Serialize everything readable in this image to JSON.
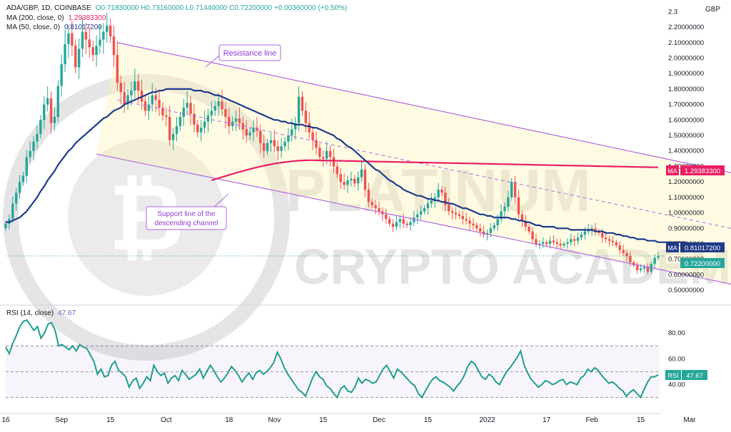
{
  "header": {
    "symbol": "ADA/GBP, 1D, COINBASE",
    "ohlc": "O0.71830000 H0.73160000 L0.71440000 C0.72200000 +0.00360000 (+0.50%)",
    "ma200_label": "MA (200, close, 0)",
    "ma200_value": "1.29383300",
    "ma50_label": "MA (50, close, 0)",
    "ma50_value": "0.81017200",
    "rsi_label": "RSI (14, close)",
    "rsi_value": "47.67"
  },
  "currency": "GBP",
  "annotations": {
    "resistance": "Resistance line",
    "support_line1": "Support line of the",
    "support_line2": "descending channel"
  },
  "watermark": {
    "line1": "PLATINUM",
    "line2": "CRYPTO ACADEMY"
  },
  "badges": {
    "ma200_tag": "MA",
    "ma200_value": "1.29383300",
    "ma50_tag": "MA",
    "ma50_value": "0.81017200",
    "price_value": "0.72200000",
    "rsi_tag": "RSI",
    "rsi_value": "47.67"
  },
  "colors": {
    "up": "#26a69a",
    "down": "#ef5350",
    "ma50": "#1e3a8a",
    "ma200": "#e91e63",
    "channel": "#b266e0",
    "rsi": "#1f9e8f",
    "price_line": "#26a69a"
  },
  "chart_data": [
    {
      "type": "candlestick",
      "title": "ADA/GBP, 1D, COINBASE",
      "y_ticks": [
        "2.3",
        "2.20000000",
        "2.10000000",
        "2.00000000",
        "1.90000000",
        "1.80000000",
        "1.70000000",
        "1.60000000",
        "1.50000000",
        "1.40000000",
        "1.30000000",
        "1.20000000",
        "1.10000000",
        "1.00000000",
        "0.90000000",
        "0.80000000",
        "0.70000000",
        "0.60000000",
        "0.50000000"
      ],
      "ylim": [
        0.45,
        2.32
      ],
      "x_ticks": [
        "16",
        "Sep",
        "15",
        "Oct",
        "18",
        "Nov",
        "15",
        "Dec",
        "15",
        "2022",
        "17",
        "Feb",
        "15",
        "Mar"
      ],
      "x_tick_days": [
        0,
        16,
        30,
        46,
        64,
        77,
        91,
        107,
        121,
        138,
        155,
        168,
        182,
        196
      ],
      "candles_close": [
        0.93,
        0.96,
        1.06,
        1.13,
        1.2,
        1.24,
        1.36,
        1.4,
        1.46,
        1.51,
        1.6,
        1.7,
        1.74,
        1.58,
        1.62,
        1.82,
        1.96,
        2.09,
        2.16,
        2.08,
        1.94,
        2.06,
        2.17,
        2.12,
        2.07,
        2.02,
        2.08,
        2.12,
        2.17,
        2.21,
        2.14,
        2.02,
        1.84,
        1.78,
        1.7,
        1.76,
        1.79,
        1.85,
        1.79,
        1.72,
        1.66,
        1.7,
        1.76,
        1.73,
        1.68,
        1.63,
        1.62,
        1.47,
        1.51,
        1.56,
        1.62,
        1.68,
        1.71,
        1.64,
        1.57,
        1.52,
        1.55,
        1.59,
        1.63,
        1.66,
        1.69,
        1.72,
        1.67,
        1.62,
        1.56,
        1.59,
        1.61,
        1.58,
        1.54,
        1.5,
        1.52,
        1.55,
        1.53,
        1.45,
        1.4,
        1.45,
        1.47,
        1.43,
        1.4,
        1.43,
        1.46,
        1.5,
        1.54,
        1.58,
        1.75,
        1.66,
        1.58,
        1.52,
        1.47,
        1.42,
        1.36,
        1.35,
        1.4,
        1.36,
        1.3,
        1.25,
        1.2,
        1.18,
        1.21,
        1.22,
        1.19,
        1.23,
        1.28,
        1.15,
        1.07,
        1.05,
        1.03,
        1.01,
        0.99,
        0.96,
        0.93,
        0.91,
        0.94,
        0.96,
        0.93,
        0.92,
        0.94,
        0.97,
        0.99,
        1.01,
        1.03,
        1.06,
        1.08,
        1.1,
        1.15,
        1.13,
        1.05,
        1.01,
        1.0,
        0.99,
        0.98,
        0.96,
        0.95,
        0.93,
        0.92,
        0.9,
        0.88,
        0.86,
        0.87,
        0.9,
        0.92,
        0.96,
        1.01,
        1.04,
        1.1,
        1.2,
        1.1,
        0.99,
        0.95,
        0.91,
        0.88,
        0.83,
        0.8,
        0.8,
        0.81,
        0.8,
        0.82,
        0.81,
        0.8,
        0.79,
        0.8,
        0.81,
        0.83,
        0.82,
        0.84,
        0.86,
        0.88,
        0.89,
        0.9,
        0.88,
        0.87,
        0.84,
        0.83,
        0.82,
        0.81,
        0.79,
        0.76,
        0.74,
        0.72,
        0.68,
        0.66,
        0.63,
        0.64,
        0.65,
        0.62,
        0.67,
        0.71,
        0.72
      ],
      "ma50": [
        0.94,
        0.94,
        0.95,
        0.96,
        0.97,
        0.99,
        1.01,
        1.04,
        1.07,
        1.1,
        1.14,
        1.17,
        1.21,
        1.24,
        1.27,
        1.31,
        1.34,
        1.37,
        1.4,
        1.42,
        1.45,
        1.47,
        1.49,
        1.51,
        1.53,
        1.55,
        1.57,
        1.59,
        1.61,
        1.62,
        1.64,
        1.66,
        1.67,
        1.68,
        1.7,
        1.71,
        1.72,
        1.73,
        1.74,
        1.75,
        1.76,
        1.77,
        1.78,
        1.78,
        1.79,
        1.79,
        1.8,
        1.8,
        1.8,
        1.8,
        1.8,
        1.8,
        1.8,
        1.8,
        1.79,
        1.79,
        1.79,
        1.78,
        1.78,
        1.77,
        1.76,
        1.76,
        1.75,
        1.74,
        1.73,
        1.72,
        1.71,
        1.7,
        1.69,
        1.68,
        1.67,
        1.66,
        1.65,
        1.64,
        1.63,
        1.62,
        1.61,
        1.6,
        1.6,
        1.59,
        1.59,
        1.58,
        1.58,
        1.57,
        1.57,
        1.57,
        1.56,
        1.56,
        1.55,
        1.55,
        1.54,
        1.53,
        1.52,
        1.51,
        1.5,
        1.48,
        1.47,
        1.45,
        1.43,
        1.42,
        1.4,
        1.38,
        1.36,
        1.34,
        1.32,
        1.3,
        1.28,
        1.27,
        1.25,
        1.23,
        1.21,
        1.2,
        1.18,
        1.17,
        1.15,
        1.14,
        1.13,
        1.12,
        1.11,
        1.11,
        1.1,
        1.09,
        1.09,
        1.08,
        1.08,
        1.07,
        1.07,
        1.06,
        1.06,
        1.05,
        1.04,
        1.03,
        1.03,
        1.02,
        1.01,
        1.0,
        0.99,
        0.99,
        0.98,
        0.98,
        0.97,
        0.97,
        0.97,
        0.97,
        0.97,
        0.96,
        0.96,
        0.95,
        0.95,
        0.94,
        0.94,
        0.93,
        0.92,
        0.92,
        0.91,
        0.91,
        0.91,
        0.91,
        0.9,
        0.9,
        0.9,
        0.9,
        0.89,
        0.89,
        0.89,
        0.89,
        0.89,
        0.89,
        0.89,
        0.88,
        0.88,
        0.88,
        0.87,
        0.87,
        0.87,
        0.86,
        0.86,
        0.85,
        0.85,
        0.84,
        0.84,
        0.83,
        0.83,
        0.83,
        0.82,
        0.82,
        0.82,
        0.81,
        0.81,
        0.81,
        0.81,
        0.81,
        0.81,
        0.81,
        0.81,
        0.81
      ],
      "ma200": {
        "start_day": 59,
        "start": 1.21,
        "peak_day": 88,
        "peak": 1.34,
        "end": 1.29383
      },
      "channel": {
        "resistance": [
          [
            32,
            2.1
          ],
          [
            210,
            1.25
          ]
        ],
        "support": [
          [
            26,
            1.38
          ],
          [
            210,
            0.53
          ]
        ],
        "midline": [
          [
            32,
            1.73
          ],
          [
            210,
            0.89
          ]
        ]
      },
      "last_price": 0.722
    },
    {
      "type": "line",
      "title": "RSI (14, close)",
      "y_ticks": [
        "80.00",
        "60.00",
        "40.00"
      ],
      "ylim": [
        22,
        95
      ],
      "levels": [
        70,
        50,
        30
      ],
      "values": [
        69,
        64,
        72,
        78,
        85,
        89,
        90,
        86,
        82,
        85,
        76,
        80,
        87,
        88,
        82,
        70,
        71,
        69,
        67,
        70,
        66,
        71,
        69,
        68,
        63,
        58,
        48,
        52,
        46,
        47,
        55,
        58,
        51,
        49,
        46,
        38,
        43,
        45,
        37,
        41,
        46,
        43,
        55,
        50,
        47,
        49,
        41,
        45,
        47,
        43,
        51,
        48,
        44,
        46,
        48,
        52,
        45,
        50,
        55,
        51,
        46,
        42,
        45,
        49,
        54,
        51,
        47,
        42,
        46,
        49,
        44,
        49,
        51,
        48,
        50,
        53,
        57,
        65,
        60,
        53,
        48,
        44,
        40,
        36,
        34,
        31,
        38,
        45,
        50,
        46,
        44,
        39,
        37,
        33,
        30,
        37,
        39,
        35,
        34,
        38,
        45,
        41,
        44,
        43,
        41,
        42,
        47,
        52,
        55,
        50,
        45,
        52,
        50,
        47,
        44,
        41,
        39,
        33,
        30,
        35,
        40,
        44,
        46,
        43,
        42,
        40,
        38,
        35,
        39,
        42,
        47,
        54,
        58,
        56,
        51,
        46,
        44,
        48,
        46,
        42,
        40,
        45,
        50,
        53,
        57,
        61,
        66,
        55,
        49,
        44,
        41,
        38,
        40,
        43,
        42,
        40,
        41,
        43,
        44,
        40,
        42,
        41,
        40,
        45,
        47,
        52,
        50,
        53,
        51,
        47,
        44,
        41,
        42,
        40,
        37,
        35,
        31,
        34,
        36,
        33,
        30,
        36,
        42,
        46,
        46,
        47.67
      ],
      "last_value": 47.67
    }
  ]
}
